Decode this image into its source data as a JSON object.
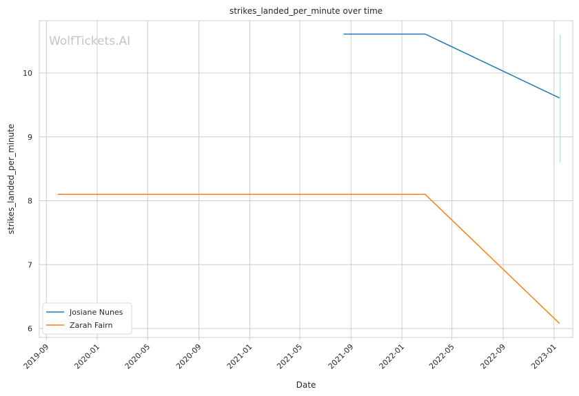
{
  "watermark": "WolfTickets.AI",
  "chart_data": {
    "type": "line",
    "title": "strikes_landed_per_minute over time",
    "xlabel": "Date",
    "ylabel": "strikes_landed_per_minute",
    "x_ticks": [
      "2019-09",
      "2020-01",
      "2020-05",
      "2020-09",
      "2021-01",
      "2021-05",
      "2021-09",
      "2022-01",
      "2022-05",
      "2022-09",
      "2023-01"
    ],
    "y_ticks": [
      6,
      7,
      8,
      9,
      10
    ],
    "xlim": [
      "2019-08-15",
      "2023-02-15"
    ],
    "ylim": [
      5.86,
      10.82
    ],
    "grid": true,
    "legend_position": "lower-left",
    "series": [
      {
        "name": "Josiane Nunes",
        "color": "#1f77b4",
        "points": [
          {
            "x": "2021-08-14",
            "y": 10.61
          },
          {
            "x": "2022-02-26",
            "y": 10.61
          },
          {
            "x": "2023-01-14",
            "y": 9.61
          }
        ]
      },
      {
        "name": "Zarah Fairn",
        "color": "#ff7f0e",
        "points": [
          {
            "x": "2019-09-28",
            "y": 8.1
          },
          {
            "x": "2022-02-26",
            "y": 8.1
          },
          {
            "x": "2023-01-14",
            "y": 6.08
          }
        ]
      }
    ],
    "annotation_line": {
      "x": "2023-01-14",
      "y_range": [
        8.6,
        10.6
      ],
      "color": "#a8d8e0"
    }
  }
}
